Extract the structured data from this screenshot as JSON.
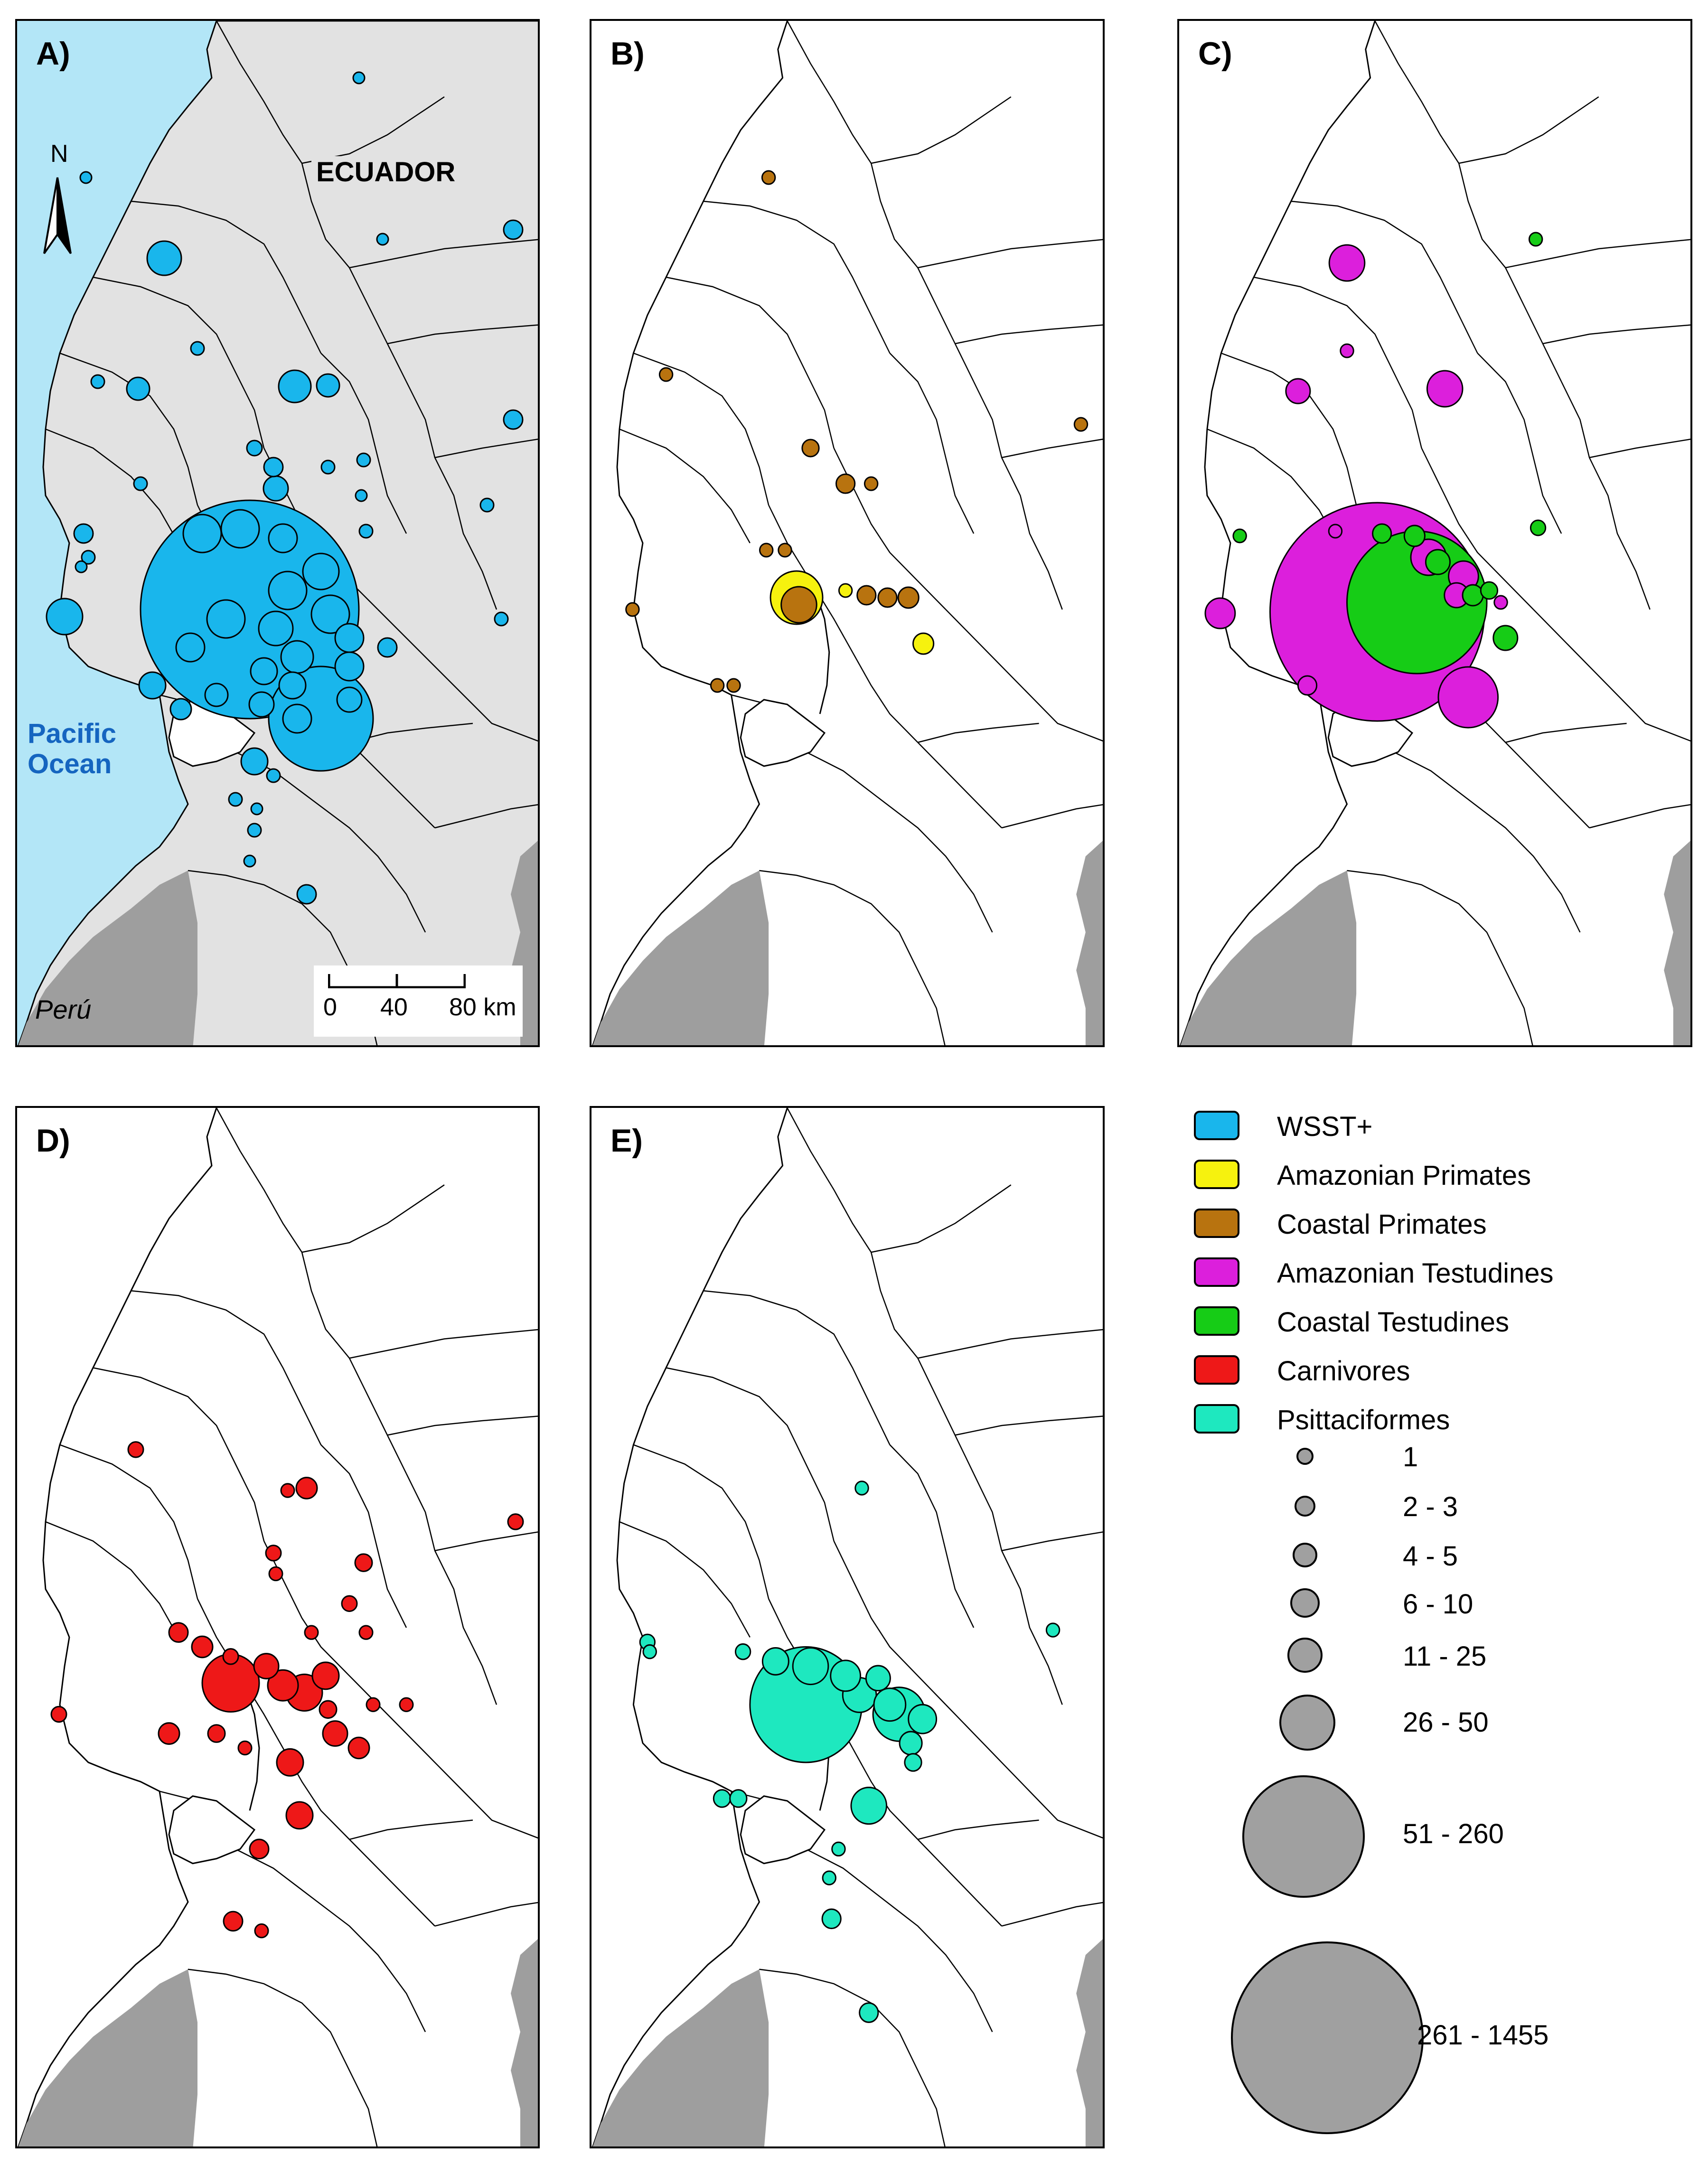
{
  "figure": {
    "panels": [
      {
        "id": "A",
        "label": "A)",
        "colors": [
          "#19b6ec"
        ]
      },
      {
        "id": "B",
        "label": "B)",
        "colors": [
          "#b8730f",
          "#f6f20e"
        ]
      },
      {
        "id": "C",
        "label": "C)",
        "colors": [
          "#dc1fdc",
          "#16cc16"
        ]
      },
      {
        "id": "D",
        "label": "D)",
        "colors": [
          "#ee1818"
        ]
      },
      {
        "id": "E",
        "label": "E)",
        "colors": [
          "#1ee8bf"
        ]
      }
    ],
    "map_labels": {
      "country": "ECUADOR",
      "ocean": "Pacific Ocean",
      "neighbor": "Perú",
      "north": "N"
    },
    "scale_bar": {
      "ticks": [
        "0",
        "40",
        "80 km"
      ]
    },
    "colors": {
      "ocean": "#b3e6f7",
      "land": "#e2e2e2",
      "peru_land": "#9e9e9e",
      "border": "#000000",
      "size_legend": "#a0a0a0"
    },
    "legend": {
      "categories": [
        {
          "label": "WSST+",
          "color": "#19b6ec"
        },
        {
          "label": "Amazonian Primates",
          "color": "#f6f20e"
        },
        {
          "label": "Coastal Primates",
          "color": "#b8730f"
        },
        {
          "label": "Amazonian Testudines",
          "color": "#dc1fdc"
        },
        {
          "label": "Coastal Testudines",
          "color": "#16cc16"
        },
        {
          "label": "Carnivores",
          "color": "#ee1818"
        },
        {
          "label": "Psittaciformes",
          "color": "#1ee8bf"
        }
      ],
      "size_classes": [
        {
          "label": "1"
        },
        {
          "label": "2 - 3"
        },
        {
          "label": "4 - 5"
        },
        {
          "label": "6 - 10"
        },
        {
          "label": "11 - 25"
        },
        {
          "label": "26 - 50"
        },
        {
          "label": "51 - 260"
        },
        {
          "label": "261 - 1455"
        }
      ]
    }
  }
}
